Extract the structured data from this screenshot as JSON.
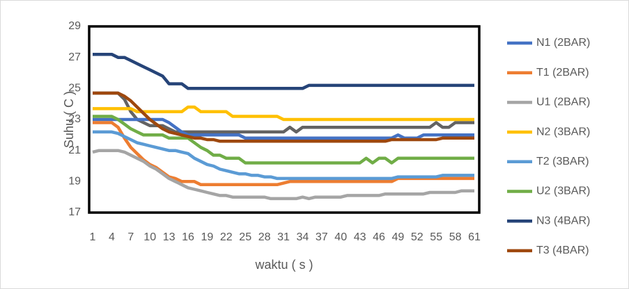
{
  "chart_data": {
    "type": "line",
    "xlabel": "waktu ( s )",
    "ylabel": "Suhu ( C )",
    "categories": [
      1,
      null,
      null,
      4,
      null,
      null,
      7,
      null,
      null,
      10,
      null,
      null,
      13,
      null,
      null,
      16,
      null,
      null,
      19,
      null,
      null,
      22,
      null,
      null,
      25,
      null,
      null,
      28,
      null,
      null,
      31,
      null,
      null,
      34,
      null,
      null,
      37,
      null,
      null,
      40,
      null,
      null,
      43,
      null,
      null,
      46,
      null,
      null,
      49,
      null,
      null,
      52,
      null,
      null,
      55,
      null,
      null,
      58,
      null,
      null,
      61
    ],
    "ylim": [
      17,
      29
    ],
    "yticks": [
      17,
      19,
      21,
      23,
      25,
      27,
      29
    ],
    "grid": false,
    "legend": "right",
    "series": [
      {
        "color": "#636363",
        "values": [
          24.7,
          24.7,
          24.7,
          24.7,
          24.7,
          24.3,
          23.5,
          23.0,
          22.8,
          22.6,
          22.6,
          22.6,
          22.4,
          22.2,
          22.2,
          22.2,
          22.2,
          22.2,
          22.2,
          22.2,
          22.2,
          22.2,
          22.2,
          22.2,
          22.2,
          22.2,
          22.2,
          22.2,
          22.2,
          22.2,
          22.2,
          22.5,
          22.2,
          22.5,
          22.5,
          22.5,
          22.5,
          22.5,
          22.5,
          22.5,
          22.5,
          22.5,
          22.5,
          22.5,
          22.5,
          22.5,
          22.5,
          22.5,
          22.5,
          22.5,
          22.5,
          22.5,
          22.5,
          22.5,
          22.8,
          22.5,
          22.5,
          22.8,
          22.8,
          22.8,
          22.8
        ]
      },
      {
        "name": "N1 (2BAR)",
        "color": "#4472c4",
        "values": [
          23,
          23,
          23,
          23,
          23,
          23,
          23,
          23,
          23,
          23,
          23,
          23,
          22.8,
          22.5,
          22.2,
          22,
          22,
          22,
          22,
          22,
          22,
          22,
          22,
          22,
          21.8,
          21.8,
          21.8,
          21.8,
          21.8,
          21.8,
          21.8,
          21.8,
          21.8,
          21.8,
          21.8,
          21.8,
          21.8,
          21.8,
          21.8,
          21.8,
          21.8,
          21.8,
          21.8,
          21.8,
          21.8,
          21.8,
          21.8,
          21.8,
          22,
          21.8,
          21.8,
          21.8,
          22,
          22,
          22,
          22,
          22,
          22,
          22,
          22,
          22
        ]
      },
      {
        "name": "T1 (2BAR)",
        "color": "#ed7d31",
        "values": [
          22.8,
          22.8,
          22.8,
          22.8,
          22.5,
          21.8,
          21.2,
          20.8,
          20.4,
          20.1,
          19.9,
          19.6,
          19.3,
          19.2,
          19.0,
          19.0,
          19.0,
          18.8,
          18.8,
          18.8,
          18.8,
          18.8,
          18.8,
          18.8,
          18.8,
          18.8,
          18.8,
          18.8,
          18.8,
          18.8,
          18.9,
          19.0,
          19.0,
          19.0,
          19.0,
          19.0,
          19.0,
          19.0,
          19.0,
          19.0,
          19.0,
          19.0,
          19.0,
          19.0,
          19.0,
          19.0,
          19.0,
          19.0,
          19.2,
          19.2,
          19.2,
          19.2,
          19.2,
          19.2,
          19.2,
          19.2,
          19.2,
          19.2,
          19.2,
          19.2,
          19.2
        ]
      },
      {
        "name": "U1 (2BAR)",
        "color": "#a5a5a5",
        "values": [
          20.9,
          21.0,
          21.0,
          21.0,
          21.0,
          20.9,
          20.7,
          20.5,
          20.3,
          20.0,
          19.8,
          19.5,
          19.2,
          19.0,
          18.8,
          18.6,
          18.5,
          18.4,
          18.3,
          18.2,
          18.1,
          18.1,
          18.0,
          18.0,
          18.0,
          18.0,
          18.0,
          18.0,
          17.9,
          17.9,
          17.9,
          17.9,
          17.9,
          18.0,
          17.9,
          18.0,
          18.0,
          18.0,
          18.0,
          18.0,
          18.1,
          18.1,
          18.1,
          18.1,
          18.1,
          18.1,
          18.2,
          18.2,
          18.2,
          18.2,
          18.2,
          18.2,
          18.2,
          18.3,
          18.3,
          18.3,
          18.3,
          18.3,
          18.4,
          18.4,
          18.4
        ]
      },
      {
        "name": "N2 (3BAR)",
        "color": "#ffc000",
        "values": [
          23.7,
          23.7,
          23.7,
          23.7,
          23.7,
          23.7,
          23.7,
          23.5,
          23.5,
          23.5,
          23.5,
          23.5,
          23.5,
          23.5,
          23.5,
          23.8,
          23.8,
          23.5,
          23.5,
          23.5,
          23.5,
          23.5,
          23.2,
          23.2,
          23.2,
          23.2,
          23.2,
          23.2,
          23.2,
          23.2,
          23.0,
          23.0,
          23.0,
          23.0,
          23.0,
          23.0,
          23.0,
          23.0,
          23.0,
          23.0,
          23.0,
          23.0,
          23.0,
          23.0,
          23.0,
          23.0,
          23.0,
          23.0,
          23.0,
          23.0,
          23.0,
          23.0,
          23.0,
          23.0,
          23.0,
          23.0,
          23.0,
          23.0,
          23.0,
          23.0,
          23.0
        ]
      },
      {
        "name": "T2 (3BAR)",
        "color": "#5b9bd5",
        "values": [
          22.2,
          22.2,
          22.2,
          22.2,
          22.1,
          21.9,
          21.7,
          21.5,
          21.4,
          21.3,
          21.2,
          21.1,
          21.0,
          21.0,
          20.9,
          20.8,
          20.5,
          20.3,
          20.1,
          20.0,
          19.8,
          19.7,
          19.6,
          19.5,
          19.5,
          19.4,
          19.4,
          19.3,
          19.3,
          19.2,
          19.2,
          19.2,
          19.2,
          19.2,
          19.2,
          19.2,
          19.2,
          19.2,
          19.2,
          19.2,
          19.2,
          19.2,
          19.2,
          19.2,
          19.2,
          19.2,
          19.2,
          19.2,
          19.3,
          19.3,
          19.3,
          19.3,
          19.3,
          19.3,
          19.3,
          19.4,
          19.4,
          19.4,
          19.4,
          19.4,
          19.4
        ]
      },
      {
        "name": "U2 (3BAR)",
        "color": "#70ad47",
        "values": [
          23.2,
          23.2,
          23.2,
          23.2,
          23.0,
          22.7,
          22.4,
          22.2,
          22.0,
          22.0,
          22.0,
          22.0,
          21.8,
          21.8,
          21.8,
          21.8,
          21.5,
          21.2,
          21.0,
          20.7,
          20.7,
          20.5,
          20.5,
          20.5,
          20.2,
          20.2,
          20.2,
          20.2,
          20.2,
          20.2,
          20.2,
          20.2,
          20.2,
          20.2,
          20.2,
          20.2,
          20.2,
          20.2,
          20.2,
          20.2,
          20.2,
          20.2,
          20.2,
          20.5,
          20.2,
          20.5,
          20.5,
          20.2,
          20.5,
          20.5,
          20.5,
          20.5,
          20.5,
          20.5,
          20.5,
          20.5,
          20.5,
          20.5,
          20.5,
          20.5,
          20.5
        ]
      },
      {
        "name": "N3 (4BAR)",
        "color": "#264478",
        "values": [
          27.2,
          27.2,
          27.2,
          27.2,
          27.0,
          27.0,
          26.8,
          26.6,
          26.4,
          26.2,
          26.0,
          25.8,
          25.3,
          25.3,
          25.3,
          25.0,
          25.0,
          25.0,
          25.0,
          25.0,
          25.0,
          25.0,
          25.0,
          25.0,
          25.0,
          25.0,
          25.0,
          25.0,
          25.0,
          25.0,
          25.0,
          25.0,
          25.0,
          25.0,
          25.2,
          25.2,
          25.2,
          25.2,
          25.2,
          25.2,
          25.2,
          25.2,
          25.2,
          25.2,
          25.2,
          25.2,
          25.2,
          25.2,
          25.2,
          25.2,
          25.2,
          25.2,
          25.2,
          25.2,
          25.2,
          25.2,
          25.2,
          25.2,
          25.2,
          25.2,
          25.2
        ]
      },
      {
        "name": "T3 (4BAR)",
        "color": "#9e480e",
        "values": [
          24.7,
          24.7,
          24.7,
          24.7,
          24.7,
          24.5,
          24.2,
          23.8,
          23.4,
          23.0,
          22.7,
          22.4,
          22.2,
          22.1,
          22.0,
          21.9,
          21.8,
          21.8,
          21.7,
          21.7,
          21.6,
          21.6,
          21.6,
          21.6,
          21.6,
          21.6,
          21.6,
          21.6,
          21.6,
          21.6,
          21.6,
          21.6,
          21.6,
          21.6,
          21.6,
          21.6,
          21.6,
          21.6,
          21.6,
          21.6,
          21.6,
          21.6,
          21.6,
          21.6,
          21.6,
          21.6,
          21.6,
          21.7,
          21.7,
          21.7,
          21.7,
          21.7,
          21.7,
          21.7,
          21.7,
          21.8,
          21.8,
          21.8,
          21.8,
          21.8,
          21.8
        ]
      }
    ]
  }
}
